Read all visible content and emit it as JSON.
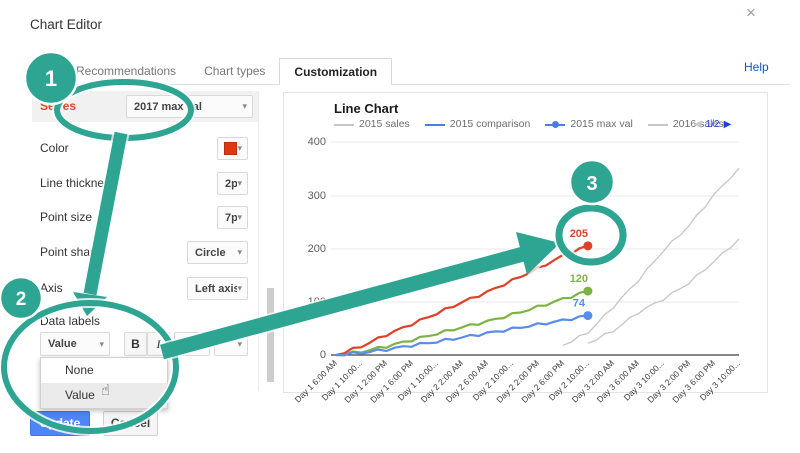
{
  "dialog": {
    "title": "Chart Editor",
    "close_glyph": "×",
    "help_label": "Help"
  },
  "tabs": [
    {
      "label": "Recommendations",
      "active": false
    },
    {
      "label": "Chart types",
      "active": false
    },
    {
      "label": "Customization",
      "active": true
    }
  ],
  "panel": {
    "series_label": "Series",
    "series_value": "2017 max val",
    "caret_glyph": "▾",
    "rows": [
      {
        "label": "Color",
        "type": "color",
        "swatch_color": "#dc3912",
        "value": ""
      },
      {
        "label": "Line thickness",
        "type": "small",
        "value": "2px"
      },
      {
        "label": "Point size",
        "type": "small",
        "value": "7px"
      },
      {
        "label": "Point shape",
        "type": "wide",
        "value": "Circle"
      },
      {
        "label": "Axis",
        "type": "wide",
        "value": "Left axis"
      }
    ],
    "data_labels": {
      "label": "Data labels",
      "value": "Value",
      "bold": "B",
      "italic": "I",
      "font_size": "12",
      "options": [
        {
          "label": "None",
          "selected": false
        },
        {
          "label": "Value",
          "selected": true
        }
      ]
    },
    "update_label": "Update",
    "cancel_label": "Cancel"
  },
  "annotations": {
    "badge_1": "1",
    "badge_2": "2",
    "badge_3": "3",
    "accent_color": "#2ea593"
  },
  "chart_data": {
    "type": "line",
    "title": "Line Chart",
    "legend": [
      {
        "label": "2015 sales",
        "color": "#c7c7c7",
        "point": false
      },
      {
        "label": "2015 comparison",
        "color": "#4a7ee6",
        "point": false
      },
      {
        "label": "2015 max val",
        "color": "#4a7ee6",
        "point": true
      },
      {
        "label": "2016 sales",
        "color": "#c7c7c7",
        "point": false
      }
    ],
    "pagination": {
      "prev_glyph": "◀",
      "label": "1/2",
      "next_glyph": "▶"
    },
    "ylim": [
      0,
      400
    ],
    "y_ticks": [
      "400",
      "300",
      "200",
      "100",
      "0"
    ],
    "x_categories": [
      "Day 1 6:00 AM",
      "Day 1 10:00...",
      "Day 1 2:00 PM",
      "Day 1 6:00 PM",
      "Day 1 10:00...",
      "Day 2 2:00 AM",
      "Day 2 6:00 AM",
      "Day 2 10:00...",
      "Day 2 2:00 PM",
      "Day 2 6:00 PM",
      "Day 2 10:00...",
      "Day 3 2:00 AM",
      "Day 3 6:00 AM",
      "Day 3 10:00...",
      "Day 3 2:00 PM",
      "Day 3 6:00 PM",
      "Day 3 10:00..."
    ],
    "series": [
      {
        "name": "2016 sales",
        "color": "#c9c9c9",
        "width": 1.4,
        "point": false,
        "end_label": "",
        "values": [
          [
            9,
            18
          ],
          [
            10,
            42
          ],
          [
            11,
            90
          ],
          [
            12,
            140
          ],
          [
            13,
            196
          ],
          [
            14,
            242
          ],
          [
            15,
            300
          ],
          [
            16,
            351
          ]
        ]
      },
      {
        "name": "2015 sales",
        "color": "#c9c9c9",
        "width": 1.4,
        "point": false,
        "end_label": "",
        "values": [
          [
            10,
            22
          ],
          [
            11,
            45
          ],
          [
            12,
            80
          ],
          [
            13,
            105
          ],
          [
            14,
            135
          ],
          [
            15,
            175
          ],
          [
            16,
            218
          ]
        ]
      },
      {
        "name": "2017 max val",
        "color": "#db4228",
        "width": 2.2,
        "point": true,
        "end_label": "205",
        "values": [
          [
            0,
            0
          ],
          [
            1,
            16
          ],
          [
            2,
            38
          ],
          [
            3,
            58
          ],
          [
            4,
            78
          ],
          [
            5,
            99
          ],
          [
            6,
            118
          ],
          [
            7,
            140
          ],
          [
            8,
            162
          ],
          [
            9,
            186
          ],
          [
            10,
            205
          ]
        ]
      },
      {
        "name": "",
        "color": "#7cb342",
        "width": 2.2,
        "point": true,
        "end_label": "120",
        "values": [
          [
            0,
            0
          ],
          [
            1,
            6
          ],
          [
            2,
            16
          ],
          [
            3,
            28
          ],
          [
            4,
            40
          ],
          [
            5,
            52
          ],
          [
            6,
            63
          ],
          [
            7,
            76
          ],
          [
            8,
            90
          ],
          [
            9,
            105
          ],
          [
            10,
            120
          ]
        ]
      },
      {
        "name": "",
        "color": "#5a8dea",
        "width": 2.2,
        "point": true,
        "end_label": "74",
        "values": [
          [
            0,
            0
          ],
          [
            1,
            4
          ],
          [
            2,
            10
          ],
          [
            3,
            18
          ],
          [
            4,
            25
          ],
          [
            5,
            33
          ],
          [
            6,
            41
          ],
          [
            7,
            49
          ],
          [
            8,
            57
          ],
          [
            9,
            65
          ],
          [
            10,
            74
          ]
        ]
      }
    ]
  }
}
